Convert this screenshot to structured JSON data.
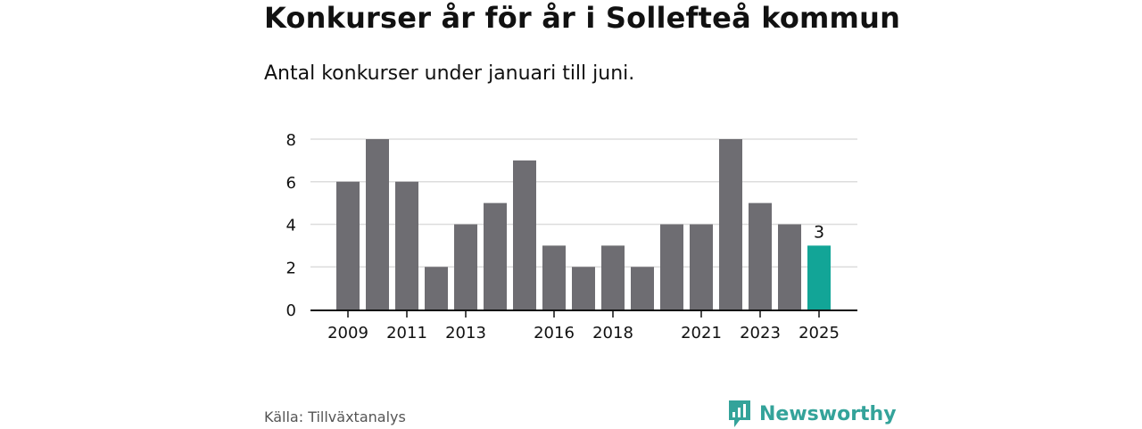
{
  "header": {
    "title": "Konkurser år för år i Sollefteå kommun",
    "subtitle": "Antal konkurser under januari till juni."
  },
  "footer": {
    "source": "Källa: Tillväxtanalys",
    "brand": "Newsworthy",
    "brand_icon": "newsworthy-logo-icon"
  },
  "colors": {
    "bar": "#6e6d72",
    "highlight": "#12a597",
    "grid": "#dddddd",
    "axis": "#111111",
    "brand": "#34a39a"
  },
  "chart_data": {
    "type": "bar",
    "categories": [
      "2009",
      "2010",
      "2011",
      "2012",
      "2013",
      "2014",
      "2015",
      "2016",
      "2017",
      "2018",
      "2019",
      "2020",
      "2021",
      "2022",
      "2023",
      "2024",
      "2025"
    ],
    "values": [
      6,
      8,
      6,
      2,
      4,
      5,
      7,
      3,
      2,
      3,
      2,
      4,
      4,
      8,
      5,
      4,
      3
    ],
    "x_tick_labels": [
      "2009",
      "2011",
      "2013",
      "2016",
      "2018",
      "2021",
      "2023",
      "2025"
    ],
    "y_ticks": [
      0,
      2,
      4,
      6,
      8
    ],
    "ylim": [
      0,
      8
    ],
    "highlight": {
      "category": "2025",
      "label": "3"
    },
    "xlabel": "",
    "ylabel": "",
    "grid": true,
    "legend": "none"
  }
}
